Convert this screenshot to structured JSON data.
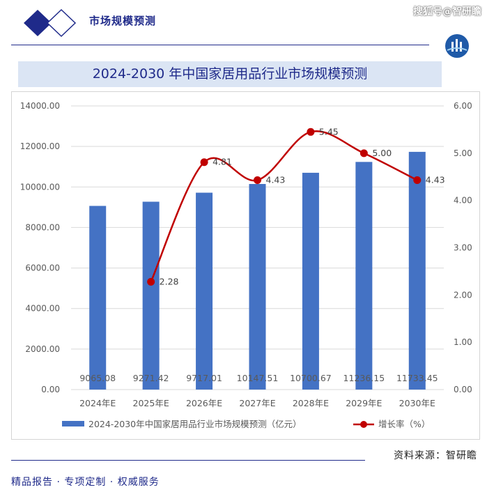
{
  "header": {
    "title": "市场规模预测",
    "watermark": "搜狐号@智研瞻"
  },
  "banner": {
    "title": "2024-2030 年中国家居用品行业市场规模预测"
  },
  "colors": {
    "bar": "#4472c4",
    "line": "#c00000",
    "brand_dark": "#1f2a8a",
    "banner_bg": "#dbe5f4"
  },
  "chart_data": {
    "type": "bar+line",
    "categories": [
      "2024年E",
      "2025年E",
      "2026年E",
      "2027年E",
      "2028年E",
      "2029年E",
      "2030年E"
    ],
    "series": [
      {
        "name": "2024-2030年中国家居用品行业市场规模预测（亿元）",
        "type": "bar",
        "axis": "left",
        "values": [
          9065.08,
          9271.42,
          9717.01,
          10147.51,
          10700.67,
          11236.15,
          11733.45
        ],
        "labels": [
          "9065.08",
          "9271.42",
          "9717.01",
          "10147.51",
          "10700.67",
          "11236.15",
          "11733.45"
        ]
      },
      {
        "name": "增长率（%）",
        "type": "line",
        "axis": "right",
        "values": [
          null,
          2.28,
          4.81,
          4.43,
          5.45,
          5.0,
          4.43
        ],
        "labels": [
          "",
          "2.28",
          "4.81",
          "4.43",
          "5.45",
          "5.00",
          "4.43"
        ]
      }
    ],
    "y_left": {
      "min": 0,
      "max": 14000,
      "ticks": [
        "0.00",
        "2000.00",
        "4000.00",
        "6000.00",
        "8000.00",
        "10000.00",
        "12000.00",
        "14000.00"
      ]
    },
    "y_right": {
      "min": 0,
      "max": 6,
      "ticks": [
        "0.00",
        "1.00",
        "2.00",
        "3.00",
        "4.00",
        "5.00",
        "6.00"
      ]
    },
    "grid": true,
    "legend": "bottom"
  },
  "source": "资料来源：智研瞻",
  "footer": "精品报告 · 专项定制 · 权威服务"
}
